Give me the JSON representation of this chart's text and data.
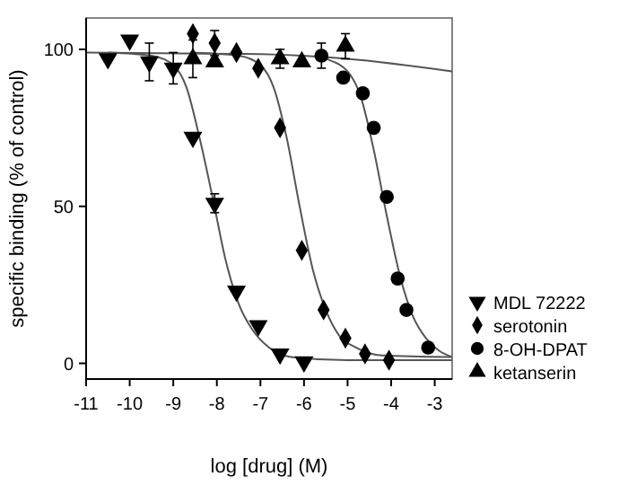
{
  "chart_data": {
    "type": "scatter",
    "xlabel": "log [drug] (M)",
    "ylabel": "specific binding (% of control)",
    "xlim": [
      -11,
      -2.6
    ],
    "xticks": [
      -11,
      -10,
      -9,
      -8,
      -7,
      -6,
      -5,
      -4,
      -3
    ],
    "ylim": [
      -5,
      110
    ],
    "yticks": [
      0,
      50,
      100
    ],
    "grid": false,
    "legend": "right",
    "series": [
      {
        "name": "MDL 72222",
        "marker": "triangle-down",
        "color": "#000000",
        "x": [
          -10.5,
          -10,
          -9.55,
          -9,
          -8.55,
          -8.05,
          -7.55,
          -7.05,
          -6.55,
          -6
        ],
        "values": [
          97,
          103,
          96,
          94,
          72,
          51,
          23,
          12,
          3,
          0.5
        ],
        "errors": [
          null,
          null,
          6,
          5,
          null,
          3,
          null,
          null,
          null,
          null
        ]
      },
      {
        "name": "serotonin",
        "marker": "diamond",
        "color": "#000000",
        "x": [
          -8.55,
          -8.05,
          -7.55,
          -7.05,
          -6.55,
          -6.05,
          -5.55,
          -5.05,
          -4.6,
          -4.05
        ],
        "values": [
          105,
          102,
          99,
          94,
          75,
          36,
          17,
          8,
          3,
          1
        ],
        "errors": [
          null,
          4,
          null,
          null,
          null,
          null,
          null,
          null,
          null,
          null
        ]
      },
      {
        "name": "8-OH-DPAT",
        "marker": "circle",
        "color": "#000000",
        "x": [
          -5.6,
          -5.1,
          -4.65,
          -4.4,
          -4.1,
          -3.85,
          -3.65,
          -3.15
        ],
        "values": [
          98,
          91,
          86,
          75,
          53,
          27,
          17,
          5
        ],
        "errors": [
          4,
          null,
          null,
          null,
          null,
          null,
          null,
          null
        ]
      },
      {
        "name": "ketanserin",
        "marker": "triangle",
        "color": "#000000",
        "x": [
          -8.55,
          -8.05,
          -6.55,
          -6.05,
          -5.05
        ],
        "values": [
          97,
          96,
          97,
          96,
          101
        ],
        "errors": [
          6,
          null,
          3,
          null,
          4
        ]
      },
      {
        "type": "line",
        "marker": "none",
        "color": "#555555",
        "x": [
          -10.5,
          -9.5,
          -9,
          -8.7,
          -8.4,
          -8.1,
          -7.8,
          -7.5,
          -7.2,
          -6.8,
          -6.3,
          -5,
          -2.6
        ],
        "values": [
          99,
          98,
          95,
          88,
          72,
          53,
          33,
          19,
          11,
          5,
          2,
          1,
          1
        ]
      },
      {
        "type": "line",
        "marker": "none",
        "color": "#555555",
        "x": [
          -8.6,
          -7.5,
          -7,
          -6.7,
          -6.4,
          -6.1,
          -5.8,
          -5.5,
          -5.2,
          -4.8,
          -4.2,
          -2.6
        ],
        "values": [
          99,
          98,
          95,
          88,
          72,
          50,
          30,
          17,
          9,
          5,
          2.5,
          2
        ]
      },
      {
        "type": "line",
        "marker": "none",
        "color": "#555555",
        "x": [
          -5.7,
          -5.5,
          -5,
          -4.7,
          -4.4,
          -4.1,
          -3.8,
          -3.5,
          -3.2,
          -2.9,
          -2.6
        ],
        "values": [
          98,
          97,
          93,
          85,
          68,
          47,
          28,
          15,
          8,
          4,
          2
        ]
      },
      {
        "type": "line",
        "marker": "none",
        "color": "#555555",
        "x": [
          -11,
          -7,
          -5,
          -2.6
        ],
        "values": [
          99,
          98.5,
          97,
          93
        ]
      }
    ]
  }
}
